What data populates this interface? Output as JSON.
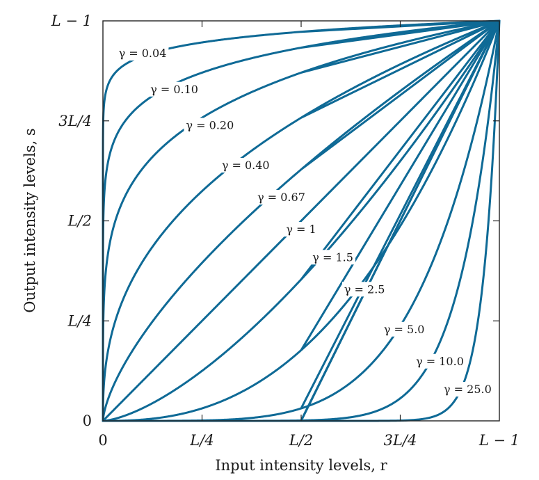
{
  "chart_data": {
    "type": "line",
    "title": "",
    "xlabel": "Input intensity levels, r",
    "ylabel": "Output intensity levels, s",
    "xlim": [
      0,
      1
    ],
    "ylim": [
      0,
      1
    ],
    "grid": false,
    "legend": "none",
    "curve_color": "#0f6a96",
    "x_ticks": [
      {
        "value": 0,
        "label": "0"
      },
      {
        "value": 0.25,
        "label": "L/4"
      },
      {
        "value": 0.5,
        "label": "L/2"
      },
      {
        "value": 0.75,
        "label": "3L/4"
      },
      {
        "value": 1,
        "label": "L − 1"
      }
    ],
    "y_ticks": [
      {
        "value": 0,
        "label": "0"
      },
      {
        "value": 0.25,
        "label": "L/4"
      },
      {
        "value": 0.5,
        "label": "L/2"
      },
      {
        "value": 0.75,
        "label": "3L/4"
      },
      {
        "value": 1,
        "label": "L − 1"
      }
    ],
    "series": [
      {
        "gamma": 0.04,
        "label": "γ = 0.04",
        "label_at": [
          0.1,
          0.92
        ]
      },
      {
        "gamma": 0.1,
        "label": "γ = 0.10",
        "label_at": [
          0.18,
          0.83
        ]
      },
      {
        "gamma": 0.2,
        "label": "γ = 0.20",
        "label_at": [
          0.27,
          0.74
        ]
      },
      {
        "gamma": 0.4,
        "label": "γ = 0.40",
        "label_at": [
          0.36,
          0.64
        ]
      },
      {
        "gamma": 0.67,
        "label": "γ = 0.67",
        "label_at": [
          0.45,
          0.56
        ]
      },
      {
        "gamma": 1.0,
        "label": "γ = 1",
        "label_at": [
          0.5,
          0.48
        ]
      },
      {
        "gamma": 1.5,
        "label": "γ = 1.5",
        "label_at": [
          0.58,
          0.41
        ]
      },
      {
        "gamma": 2.5,
        "label": "γ = 2.5",
        "label_at": [
          0.66,
          0.33
        ]
      },
      {
        "gamma": 5.0,
        "label": "γ = 5.0",
        "label_at": [
          0.76,
          0.23
        ]
      },
      {
        "gamma": 10.0,
        "label": "γ = 10.0",
        "label_at": [
          0.85,
          0.15
        ]
      },
      {
        "gamma": 25.0,
        "label": "γ = 25.0",
        "label_at": [
          0.92,
          0.08
        ]
      }
    ]
  }
}
